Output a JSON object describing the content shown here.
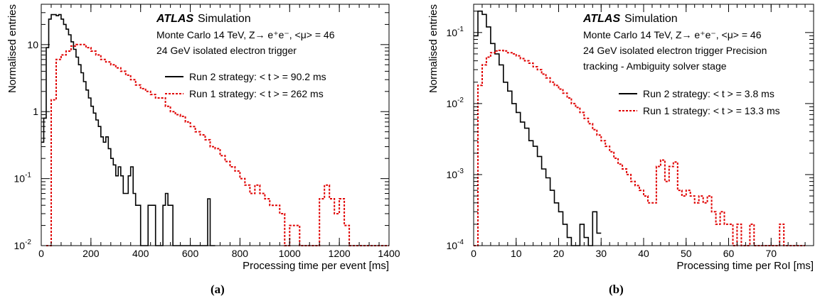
{
  "chart_data": [
    {
      "type": "histogram",
      "panel_label": "(a)",
      "xlabel": "Processing time per event [ms]",
      "ylabel": "Normalised entries",
      "xlim": [
        0,
        1400
      ],
      "ylim": [
        0.01,
        40
      ],
      "ylog": true,
      "grid": false,
      "x_ticks": [
        "0",
        "200",
        "400",
        "600",
        "800",
        "1000",
        "1200",
        "1400"
      ],
      "y_ticks": [
        {
          "value": 0.01,
          "base": "10",
          "exp": "-2"
        },
        {
          "value": 0.1,
          "base": "10",
          "exp": "-1"
        },
        {
          "value": 1,
          "base": "1",
          "exp": ""
        },
        {
          "value": 10,
          "base": "10",
          "exp": ""
        }
      ],
      "annotation": {
        "atlas": "ATLAS",
        "simulation": "Simulation",
        "line1": "Monte Carlo 14 TeV, Z→ e⁺e⁻, <μ> = 46",
        "line2": "24 GeV isolated electron trigger",
        "line3": ""
      },
      "legend_position": "top-right",
      "series": [
        {
          "name": "Run 2 strategy: < t > = 90.2 ms",
          "color": "#000000",
          "style": "solid",
          "bin_width": 10,
          "x_start": 0,
          "values": [
            0.35,
            0.8,
            9,
            24,
            28,
            28,
            27,
            28,
            24,
            20,
            17,
            14,
            11,
            8.5,
            6.5,
            5,
            3.8,
            2.8,
            2.1,
            1.6,
            1.2,
            0.95,
            0.75,
            0.6,
            0.42,
            0.35,
            0.42,
            0.28,
            0.2,
            0.16,
            0.11,
            0.15,
            0.11,
            0.06,
            0.06,
            0.11,
            0.15,
            0.06,
            0.04,
            0.04,
            0.01,
            0.01,
            0.01,
            0.04,
            0.04,
            0.04,
            0.01,
            0.01,
            0.01,
            0.04,
            0.06,
            0.04,
            0.04,
            0.01,
            0.01,
            0.01,
            0.01,
            0.01,
            0.01,
            0.01,
            0.01,
            0.01,
            0.01,
            0.01,
            0.01,
            0.01,
            0.01,
            0.05,
            0.01,
            0.01
          ]
        },
        {
          "name": "Run 1 strategy: < t > =  262 ms",
          "color": "#e00000",
          "style": "dotted",
          "bin_width": 20,
          "x_start": 20,
          "values": [
            0.01,
            1.5,
            6,
            7,
            8,
            9.5,
            10,
            10,
            9,
            8,
            7,
            6,
            5.5,
            5,
            4.5,
            4,
            3.5,
            3,
            2.5,
            2.2,
            2,
            1.8,
            1.6,
            1.6,
            1.2,
            1,
            0.9,
            0.85,
            0.7,
            0.6,
            0.5,
            0.45,
            0.38,
            0.3,
            0.28,
            0.22,
            0.18,
            0.15,
            0.13,
            0.1,
            0.08,
            0.06,
            0.08,
            0.06,
            0.05,
            0.04,
            0.04,
            0.03,
            0.01,
            0.02,
            0.02,
            0.01,
            0.01,
            0.01,
            0.01,
            0.05,
            0.08,
            0.05,
            0.03,
            0.05,
            0.02,
            0.01,
            0.01,
            0.01,
            0.01,
            0.01,
            0.01,
            0.01,
            0.01
          ]
        }
      ]
    },
    {
      "type": "histogram",
      "panel_label": "(b)",
      "xlabel": "Processing time per RoI [ms]",
      "ylabel": "Normalised entries",
      "xlim": [
        0,
        80
      ],
      "ylim": [
        0.0001,
        0.25
      ],
      "ylog": true,
      "grid": false,
      "x_ticks": [
        "0",
        "10",
        "20",
        "30",
        "40",
        "50",
        "60",
        "70"
      ],
      "y_ticks": [
        {
          "value": 0.0001,
          "base": "10",
          "exp": "-4"
        },
        {
          "value": 0.001,
          "base": "10",
          "exp": "-3"
        },
        {
          "value": 0.01,
          "base": "10",
          "exp": "-2"
        },
        {
          "value": 0.1,
          "base": "10",
          "exp": "-1"
        }
      ],
      "annotation": {
        "atlas": "ATLAS",
        "simulation": "Simulation",
        "line1": "Monte Carlo 14 TeV, Z→ e⁺e⁻, <μ> = 46",
        "line2": "24 GeV isolated electron trigger Precision",
        "line3": "tracking - Ambiguity solver stage"
      },
      "legend_position": "top-right",
      "series": [
        {
          "name": "Run 2 strategy: < t > =  3.8 ms",
          "color": "#000000",
          "style": "solid",
          "bin_width": 1,
          "x_start": 0,
          "values": [
            0.09,
            0.2,
            0.18,
            0.12,
            0.07,
            0.05,
            0.035,
            0.02,
            0.015,
            0.01,
            0.0075,
            0.0055,
            0.0045,
            0.003,
            0.0025,
            0.0018,
            0.0012,
            0.0009,
            0.0006,
            0.0004,
            0.0003,
            0.0002,
            0.00013,
            0.0001,
            0.0001,
            0.0002,
            0.00013,
            0.0001,
            0.0003,
            0.00015
          ]
        },
        {
          "name": "Run 1 strategy: < t > = 13.3 ms",
          "color": "#e00000",
          "style": "dotted",
          "bin_width": 1,
          "x_start": 0,
          "values": [
            0.0001,
            0.018,
            0.035,
            0.045,
            0.052,
            0.055,
            0.056,
            0.055,
            0.052,
            0.05,
            0.047,
            0.043,
            0.04,
            0.037,
            0.033,
            0.03,
            0.026,
            0.023,
            0.02,
            0.018,
            0.016,
            0.014,
            0.012,
            0.01,
            0.0088,
            0.0075,
            0.0062,
            0.0052,
            0.0043,
            0.0036,
            0.003,
            0.0025,
            0.0021,
            0.0017,
            0.0014,
            0.0012,
            0.001,
            0.0008,
            0.0007,
            0.0006,
            0.0005,
            0.0004,
            0.0004,
            0.0013,
            0.0016,
            0.0008,
            0.0013,
            0.0015,
            0.0006,
            0.0005,
            0.0006,
            0.0005,
            0.0004,
            0.0005,
            0.0004,
            0.0005,
            0.0003,
            0.0002,
            0.0003,
            0.0002,
            0.0002,
            0.0001,
            0.0002,
            0.0001,
            0.0001,
            0.0002,
            0.0001,
            0.0001,
            0.0001,
            0.0001,
            0.0001,
            0.0001,
            0.0002,
            0.0001,
            0.0001,
            0.0001,
            0.0001,
            0.0001
          ]
        }
      ]
    }
  ]
}
